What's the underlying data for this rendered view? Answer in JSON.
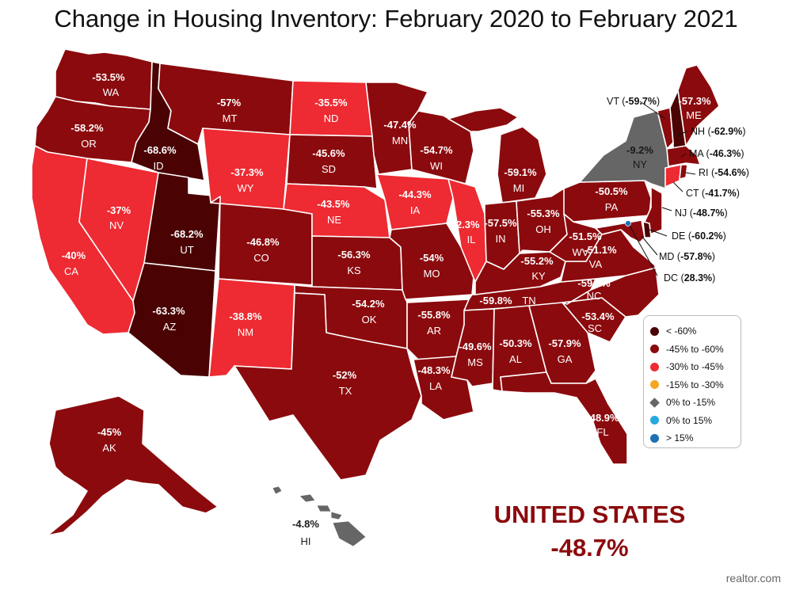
{
  "title": "Change in Housing Inventory: February 2020 to February 2021",
  "colors": {
    "lt_-60": "#4a0203",
    "-45_to_-60": "#8b0a0d",
    "-30_to_-45": "#ee2a32",
    "-15_to_-30": "#f5a623",
    "0_to_-15": "#666666",
    "0_to_15": "#29a8e0",
    "gt_15": "#1f6fb5"
  },
  "legend": [
    {
      "label": "< -60%",
      "key": "lt_-60",
      "shape": "circle"
    },
    {
      "label": "-45% to -60%",
      "key": "-45_to_-60",
      "shape": "circle"
    },
    {
      "label": "-30% to -45%",
      "key": "-30_to_-45",
      "shape": "circle"
    },
    {
      "label": "-15% to -30%",
      "key": "-15_to_-30",
      "shape": "circle"
    },
    {
      "label": "0% to -15%",
      "key": "0_to_-15",
      "shape": "diamond"
    },
    {
      "label": "0% to 15%",
      "key": "0_to_15",
      "shape": "circle"
    },
    {
      "label": "> 15%",
      "key": "gt_15",
      "shape": "circle"
    }
  ],
  "states": {
    "WA": {
      "value": "-53.5%",
      "category": "-45_to_-60"
    },
    "OR": {
      "value": "-58.2%",
      "category": "-45_to_-60"
    },
    "CA": {
      "value": "-40%",
      "category": "-30_to_-45"
    },
    "NV": {
      "value": "-37%",
      "category": "-30_to_-45"
    },
    "ID": {
      "value": "-68.6%",
      "category": "lt_-60"
    },
    "UT": {
      "value": "-68.2%",
      "category": "lt_-60"
    },
    "AZ": {
      "value": "-63.3%",
      "category": "lt_-60"
    },
    "MT": {
      "value": "-57%",
      "category": "-45_to_-60"
    },
    "WY": {
      "value": "-37.3%",
      "category": "-30_to_-45"
    },
    "CO": {
      "value": "-46.8%",
      "category": "-45_to_-60"
    },
    "NM": {
      "value": "-38.8%",
      "category": "-30_to_-45"
    },
    "ND": {
      "value": "-35.5%",
      "category": "-30_to_-45"
    },
    "SD": {
      "value": "-45.6%",
      "category": "-45_to_-60"
    },
    "NE": {
      "value": "-43.5%",
      "category": "-30_to_-45"
    },
    "KS": {
      "value": "-56.3%",
      "category": "-45_to_-60"
    },
    "OK": {
      "value": "-54.2%",
      "category": "-45_to_-60"
    },
    "TX": {
      "value": "-52%",
      "category": "-45_to_-60"
    },
    "MN": {
      "value": "-47.4%",
      "category": "-45_to_-60"
    },
    "IA": {
      "value": "-44.3%",
      "category": "-30_to_-45"
    },
    "MO": {
      "value": "-54%",
      "category": "-45_to_-60"
    },
    "AR": {
      "value": "-55.8%",
      "category": "-45_to_-60"
    },
    "LA": {
      "value": "-48.3%",
      "category": "-45_to_-60"
    },
    "WI": {
      "value": "-54.7%",
      "category": "-45_to_-60"
    },
    "IL": {
      "value": "-42.3%",
      "category": "-30_to_-45"
    },
    "MI": {
      "value": "-59.1%",
      "category": "-45_to_-60"
    },
    "IN": {
      "value": "-57.5%",
      "category": "-45_to_-60"
    },
    "OH": {
      "value": "-55.3%",
      "category": "-45_to_-60"
    },
    "KY": {
      "value": "-55.2%",
      "category": "-45_to_-60"
    },
    "TN": {
      "value": "-59.8%",
      "category": "-45_to_-60"
    },
    "MS": {
      "value": "-49.6%",
      "category": "-45_to_-60"
    },
    "AL": {
      "value": "-50.3%",
      "category": "-45_to_-60"
    },
    "GA": {
      "value": "-57.9%",
      "category": "-45_to_-60"
    },
    "FL": {
      "value": "-48.9%",
      "category": "-45_to_-60"
    },
    "SC": {
      "value": "-53.4%",
      "category": "-45_to_-60"
    },
    "NC": {
      "value": "-59.1%",
      "category": "-45_to_-60"
    },
    "VA": {
      "value": "-51.1%",
      "category": "-45_to_-60"
    },
    "WV": {
      "value": "-51.5%",
      "category": "-45_to_-60"
    },
    "PA": {
      "value": "-50.5%",
      "category": "-45_to_-60"
    },
    "NY": {
      "value": "-9.2%",
      "category": "0_to_-15"
    },
    "ME": {
      "value": "-57.3%",
      "category": "-45_to_-60"
    },
    "VT": {
      "value": "-59.7%",
      "category": "-45_to_-60"
    },
    "NH": {
      "value": "-62.9%",
      "category": "lt_-60"
    },
    "MA": {
      "value": "-46.3%",
      "category": "-45_to_-60"
    },
    "RI": {
      "value": "-54.6%",
      "category": "-45_to_-60"
    },
    "CT": {
      "value": "-41.7%",
      "category": "-30_to_-45"
    },
    "NJ": {
      "value": "-48.7%",
      "category": "-45_to_-60"
    },
    "DE": {
      "value": "-60.2%",
      "category": "lt_-60"
    },
    "MD": {
      "value": "-57.8%",
      "category": "-45_to_-60"
    },
    "DC": {
      "value": "28.3%",
      "category": "gt_15"
    },
    "AK": {
      "value": "-45%",
      "category": "-45_to_-60"
    },
    "HI": {
      "value": "-4.8%",
      "category": "0_to_-15"
    }
  },
  "united_states": {
    "name": "UNITED STATES",
    "value": "-48.7%"
  },
  "source": "realtor.com"
}
